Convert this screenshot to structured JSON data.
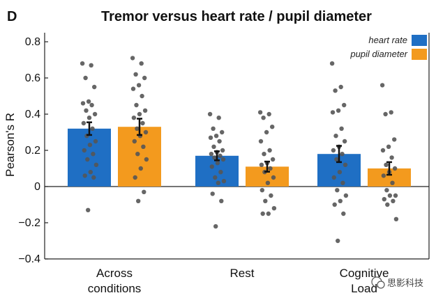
{
  "panel_letter": "D",
  "watermark": {
    "text": "思影科技"
  },
  "chart_data": {
    "type": "bar",
    "title": "Tremor versus heart rate / pupil diameter",
    "xlabel": "",
    "ylabel": "Pearson's R",
    "ylim": [
      -0.4,
      0.85
    ],
    "yticks": [
      -0.4,
      -0.2,
      0,
      0.2,
      0.4,
      0.6,
      0.8
    ],
    "ytick_labels": [
      "−0.4",
      "−0.2",
      "0",
      "0.2",
      "0.4",
      "0.6",
      "0.8"
    ],
    "categories": [
      {
        "line1": "Across",
        "line2": "conditions"
      },
      {
        "line1": "Rest",
        "line2": ""
      },
      {
        "line1": "Cognitive",
        "line2": "Load"
      }
    ],
    "legend_position": "top-right",
    "series": [
      {
        "name": "heart rate",
        "color": "#1f6fc4",
        "values": [
          0.32,
          0.17,
          0.18
        ],
        "errors": [
          0.035,
          0.025,
          0.045
        ],
        "points": [
          [
            0.68,
            0.67,
            0.6,
            0.55,
            0.47,
            0.46,
            0.45,
            0.42,
            0.4,
            0.38,
            0.35,
            0.32,
            0.28,
            0.25,
            0.23,
            0.2,
            0.18,
            0.15,
            0.12,
            0.08,
            0.06,
            0.05,
            -0.13
          ],
          [
            0.4,
            0.38,
            0.32,
            0.3,
            0.28,
            0.27,
            0.25,
            0.22,
            0.2,
            0.19,
            0.18,
            0.17,
            0.16,
            0.15,
            0.13,
            0.11,
            0.08,
            0.05,
            0.03,
            0.02,
            -0.04,
            -0.08,
            -0.22
          ],
          [
            0.68,
            0.55,
            0.53,
            0.45,
            0.42,
            0.41,
            0.32,
            0.28,
            0.25,
            0.22,
            0.2,
            0.18,
            0.15,
            0.12,
            0.08,
            0.05,
            0.02,
            -0.02,
            -0.05,
            -0.08,
            -0.1,
            -0.15,
            -0.3
          ]
        ]
      },
      {
        "name": "pupil diameter",
        "color": "#f39a1e",
        "values": [
          0.33,
          0.11,
          0.1
        ],
        "errors": [
          0.045,
          0.028,
          0.035
        ],
        "points": [
          [
            0.71,
            0.68,
            0.62,
            0.6,
            0.56,
            0.54,
            0.5,
            0.45,
            0.42,
            0.4,
            0.38,
            0.35,
            0.32,
            0.3,
            0.28,
            0.25,
            0.22,
            0.18,
            0.15,
            0.1,
            0.05,
            -0.03,
            -0.08
          ],
          [
            0.41,
            0.4,
            0.38,
            0.33,
            0.3,
            0.25,
            0.2,
            0.18,
            0.15,
            0.13,
            0.12,
            0.1,
            0.08,
            0.05,
            0.02,
            -0.02,
            -0.05,
            -0.08,
            -0.12,
            -0.15,
            -0.15
          ],
          [
            0.56,
            0.41,
            0.4,
            0.26,
            0.22,
            0.2,
            0.16,
            0.12,
            0.1,
            0.08,
            0.06,
            0.02,
            -0.02,
            -0.05,
            -0.05,
            -0.07,
            -0.08,
            -0.1,
            -0.18
          ]
        ]
      }
    ]
  }
}
